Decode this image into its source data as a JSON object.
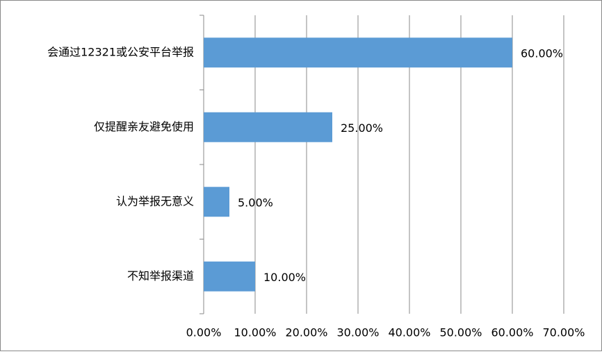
{
  "chart_data": {
    "type": "bar",
    "orientation": "horizontal",
    "categories": [
      "会通过12321或公安平台举报",
      "仅提醒亲友避免使用",
      "认为举报无意义",
      "不知举报渠道"
    ],
    "values": [
      60,
      25,
      5,
      10
    ],
    "value_labels": [
      "60.00%",
      "25.00%",
      "5.00%",
      "10.00%"
    ],
    "color": "#5b9bd5",
    "xlim": [
      0,
      70
    ],
    "xticks": [
      {
        "value": 0,
        "label": "0.00%"
      },
      {
        "value": 10,
        "label": "10.00%"
      },
      {
        "value": 20,
        "label": "20.00%"
      },
      {
        "value": 30,
        "label": "30.00%"
      },
      {
        "value": 40,
        "label": "40.00%"
      },
      {
        "value": 50,
        "label": "50.00%"
      },
      {
        "value": 60,
        "label": "60.00%"
      },
      {
        "value": 70,
        "label": "70.00%"
      }
    ],
    "grid": true
  }
}
